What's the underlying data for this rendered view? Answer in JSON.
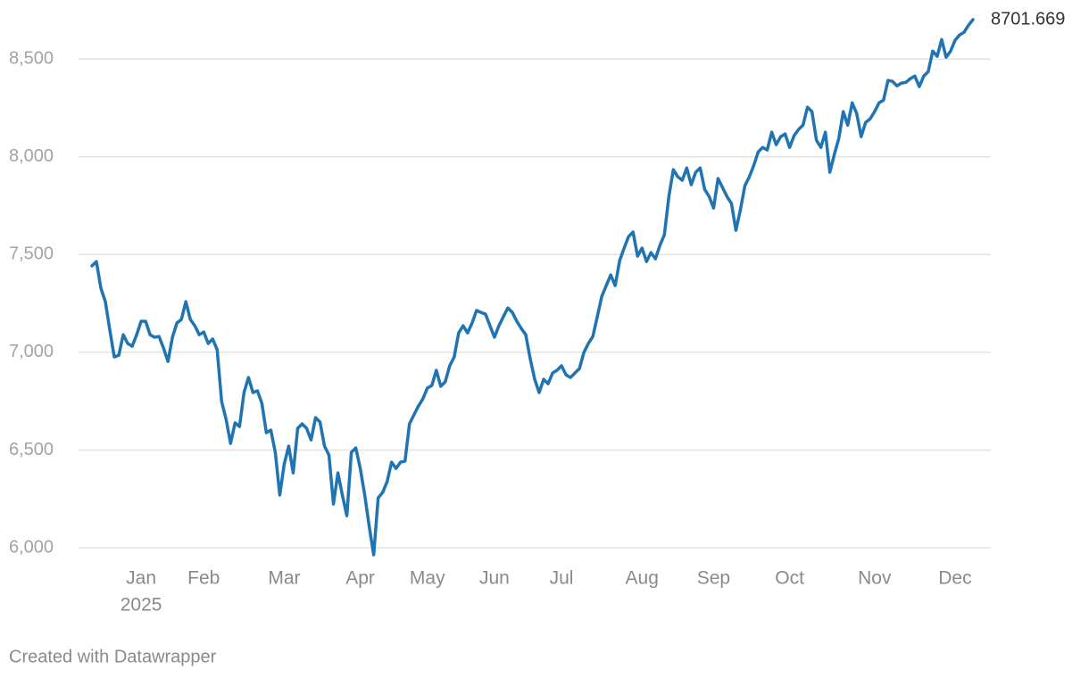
{
  "chart_data": {
    "type": "line",
    "categories": [
      null,
      null,
      null,
      null,
      null,
      null,
      null,
      null,
      null,
      null,
      null,
      "Jan",
      null,
      null,
      null,
      null,
      null,
      null,
      null,
      null,
      null,
      null,
      null,
      null,
      null,
      "Feb",
      null,
      null,
      null,
      null,
      null,
      null,
      null,
      null,
      null,
      null,
      null,
      null,
      null,
      null,
      null,
      null,
      null,
      "Mar",
      null,
      null,
      null,
      null,
      null,
      null,
      null,
      null,
      null,
      null,
      null,
      null,
      null,
      null,
      null,
      null,
      "Apr",
      null,
      null,
      null,
      null,
      null,
      null,
      null,
      null,
      null,
      null,
      null,
      null,
      null,
      null,
      "May",
      null,
      null,
      null,
      null,
      null,
      null,
      null,
      null,
      null,
      null,
      null,
      null,
      null,
      null,
      "Jun",
      null,
      null,
      null,
      null,
      null,
      null,
      null,
      null,
      null,
      null,
      null,
      null,
      null,
      null,
      "Jul",
      null,
      null,
      null,
      null,
      null,
      null,
      null,
      null,
      null,
      null,
      null,
      null,
      null,
      null,
      null,
      null,
      null,
      "Aug",
      null,
      null,
      null,
      null,
      null,
      null,
      null,
      null,
      null,
      null,
      null,
      null,
      null,
      null,
      null,
      "Sep",
      null,
      null,
      null,
      null,
      null,
      null,
      null,
      null,
      null,
      null,
      null,
      null,
      null,
      null,
      null,
      null,
      "Oct",
      null,
      null,
      null,
      null,
      null,
      null,
      null,
      null,
      null,
      null,
      null,
      null,
      null,
      null,
      null,
      null,
      null,
      null,
      "Nov",
      null,
      null,
      null,
      null,
      null,
      null,
      null,
      null,
      null,
      null,
      null,
      null,
      null,
      null,
      null,
      null,
      null,
      "Dec",
      null,
      null,
      null,
      null
    ],
    "year_label": "2025",
    "values": [
      7442,
      7464,
      7328,
      7259,
      7113,
      6976,
      6985,
      7090,
      7045,
      7031,
      7090,
      7159,
      7159,
      7090,
      7077,
      7081,
      7022,
      6953,
      7077,
      7150,
      7168,
      7259,
      7168,
      7136,
      7090,
      7104,
      7045,
      7068,
      7013,
      6748,
      6657,
      6534,
      6639,
      6620,
      6794,
      6871,
      6794,
      6803,
      6739,
      6589,
      6602,
      6488,
      6270,
      6429,
      6520,
      6383,
      6611,
      6634,
      6611,
      6552,
      6666,
      6643,
      6520,
      6474,
      6224,
      6383,
      6269,
      6164,
      6488,
      6511,
      6406,
      6269,
      6109,
      5964,
      6255,
      6283,
      6338,
      6438,
      6406,
      6438,
      6443,
      6634,
      6680,
      6725,
      6762,
      6817,
      6830,
      6908,
      6826,
      6849,
      6931,
      6976,
      7099,
      7136,
      7099,
      7150,
      7214,
      7204,
      7195,
      7136,
      7077,
      7136,
      7182,
      7227,
      7204,
      7159,
      7122,
      7090,
      6967,
      6862,
      6794,
      6862,
      6839,
      6894,
      6908,
      6931,
      6885,
      6871,
      6894,
      6917,
      6999,
      7045,
      7081,
      7182,
      7286,
      7341,
      7396,
      7341,
      7469,
      7533,
      7592,
      7615,
      7492,
      7533,
      7464,
      7510,
      7478,
      7547,
      7601,
      7797,
      7934,
      7898,
      7880,
      7943,
      7857,
      7921,
      7943,
      7834,
      7797,
      7738,
      7889,
      7843,
      7797,
      7761,
      7624,
      7729,
      7852,
      7898,
      7957,
      8026,
      8048,
      8035,
      8126,
      8062,
      8103,
      8117,
      8048,
      8108,
      8140,
      8162,
      8254,
      8231,
      8085,
      8048,
      8126,
      7921,
      8012,
      8094,
      8231,
      8162,
      8276,
      8222,
      8103,
      8176,
      8194,
      8231,
      8276,
      8290,
      8391,
      8386,
      8363,
      8377,
      8381,
      8400,
      8413,
      8359,
      8413,
      8436,
      8541,
      8514,
      8600,
      8509,
      8541,
      8596,
      8623,
      8637,
      8673,
      8701.669
    ],
    "color": "#1f74b1",
    "ylim": [
      5950,
      8720
    ],
    "yticks": [
      {
        "value": 6000,
        "label": "6,000"
      },
      {
        "value": 6500,
        "label": "6,500"
      },
      {
        "value": 7000,
        "label": "7,000"
      },
      {
        "value": 7500,
        "label": "7,500"
      },
      {
        "value": 8000,
        "label": "8,000"
      },
      {
        "value": 8500,
        "label": "8,500"
      }
    ],
    "grid": true,
    "credit": "Created with Datawrapper"
  }
}
